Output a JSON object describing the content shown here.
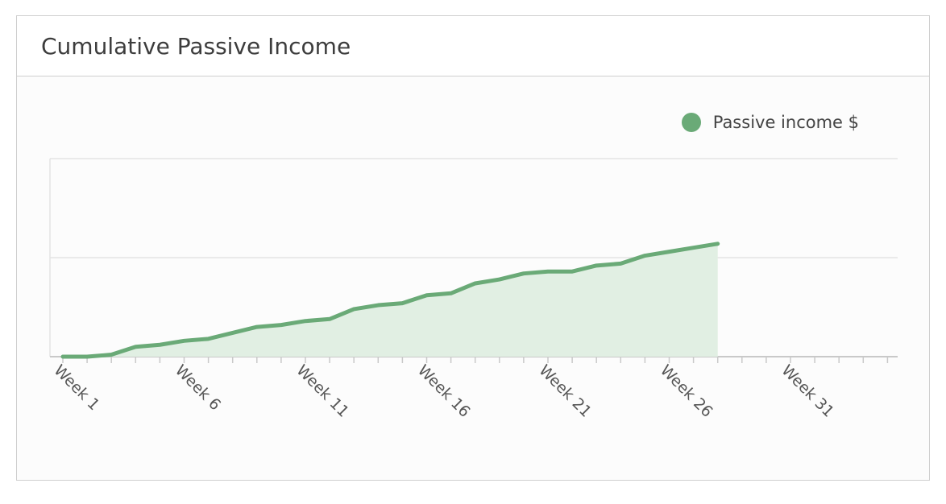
{
  "card": {
    "title": "Cumulative Passive Income"
  },
  "colors": {
    "line": "#6aaa77",
    "area": "#e1efe3",
    "grid": "#e3e3e3",
    "axis": "#c9c9c9",
    "tick_text": "#555555"
  },
  "chart_data": {
    "type": "area",
    "title": "Cumulative Passive Income",
    "legend": {
      "position": "top-right",
      "entries": [
        "Passive income $"
      ]
    },
    "series": [
      {
        "name": "Passive income $",
        "values": [
          0,
          0,
          1,
          5,
          6,
          8,
          9,
          12,
          15,
          16,
          18,
          19,
          24,
          26,
          27,
          31,
          32,
          37,
          39,
          42,
          43,
          43,
          46,
          47,
          51,
          53,
          55,
          57
        ]
      }
    ],
    "x_count": 35,
    "x_tick_labels": [
      "Week 1",
      "Week 6",
      "Week 11",
      "Week 16",
      "Week 21",
      "Week 26",
      "Week 31"
    ],
    "x_tick_label_indices": [
      0,
      5,
      10,
      15,
      20,
      25,
      30
    ],
    "ylim": [
      0,
      100
    ],
    "y_gridlines": [
      0,
      50,
      100
    ],
    "grid": true
  }
}
